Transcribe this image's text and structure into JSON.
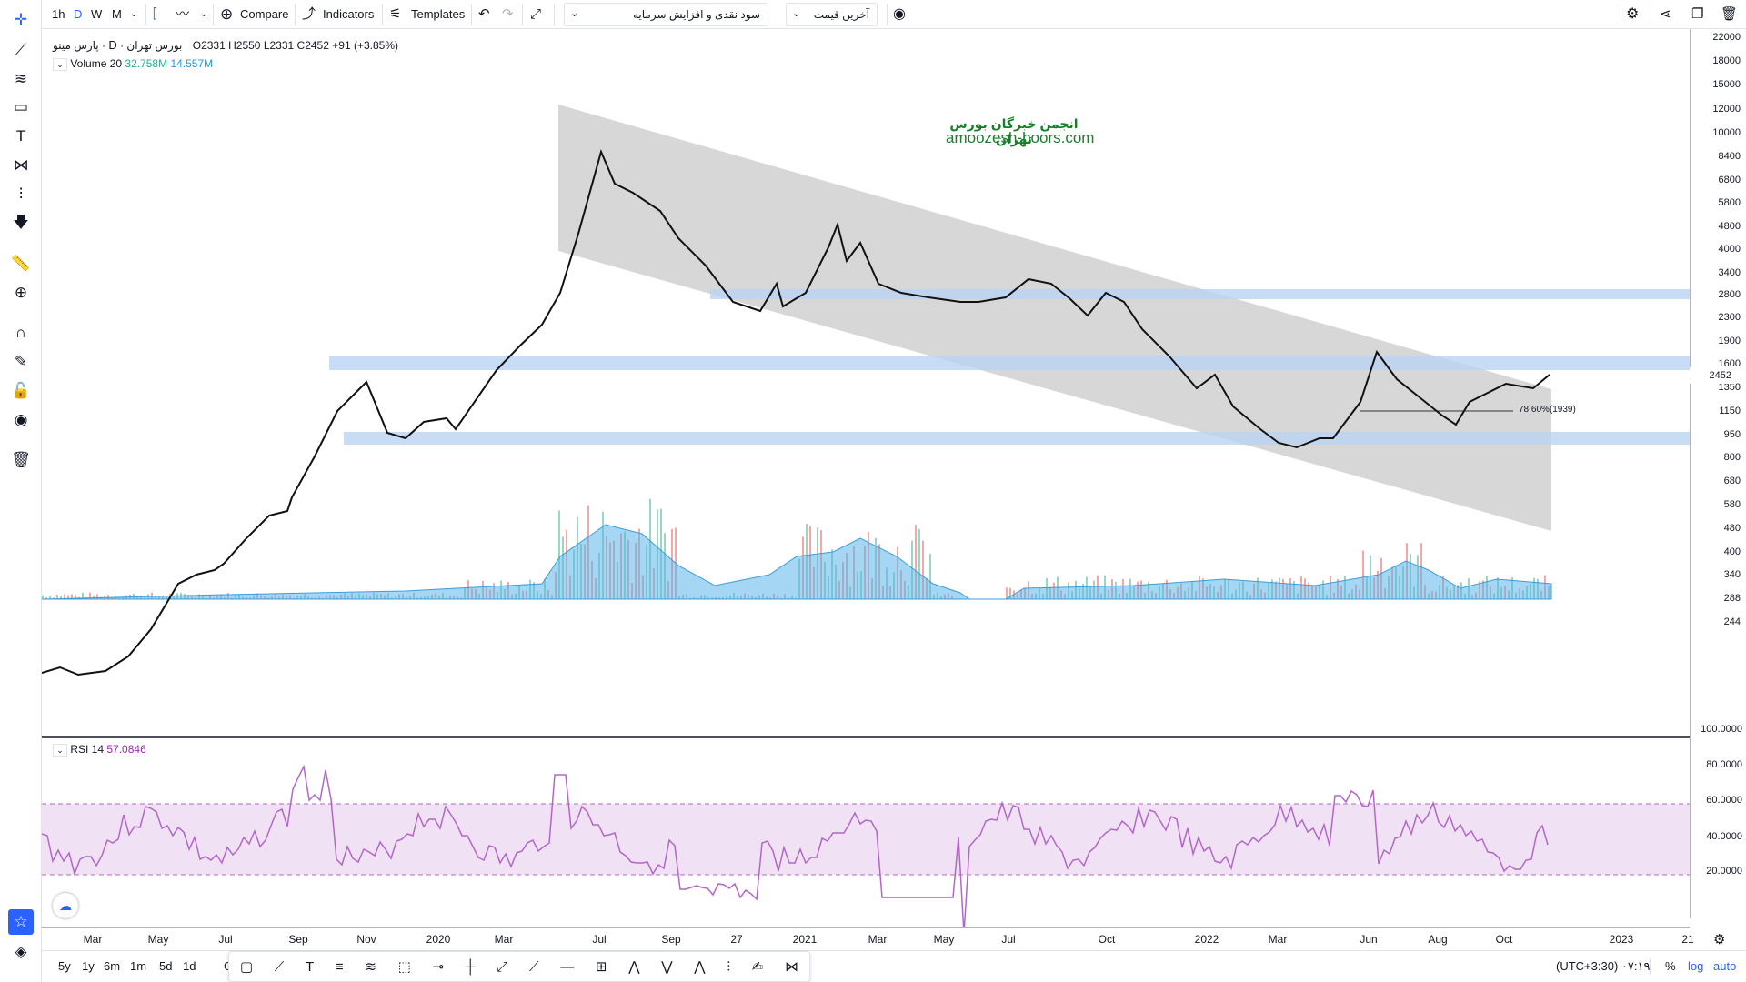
{
  "toolbar": {
    "intervals": [
      "1h",
      "D",
      "W",
      "M"
    ],
    "compare_label": "Compare",
    "indicators_label": "Indicators",
    "templates_label": "Templates",
    "dropdown_template": "سود نقدی و افزایش سرمایه",
    "dropdown_price": "آخرین قیمت"
  },
  "legend": {
    "symbol_name": "پارس مینو",
    "exchange": "بورس تهران",
    "interval": "D",
    "open": "O2331",
    "high": "H2550",
    "low": "L2331",
    "close": "C2452",
    "change": "+91 (+3.85%)",
    "volume_label": "Volume 20",
    "volume_value1": "32.758M",
    "volume_value2": "14.557M",
    "rsi_label": "RSI 14",
    "rsi_value": "57.0846"
  },
  "watermark": {
    "line1": "انجمن خبرگان بورس تهران",
    "line2": "amoozesh-boors.com"
  },
  "fib_label": "78.60%(1939)",
  "price_axis": {
    "ticks": [
      "22000",
      "18000",
      "15000",
      "12000",
      "10000",
      "8400",
      "6800",
      "5800",
      "4800",
      "4000",
      "3400",
      "2800",
      "2300",
      "1900",
      "1600",
      "1350",
      "1150",
      "950",
      "800",
      "680",
      "580",
      "480",
      "400",
      "340",
      "288",
      "244"
    ],
    "current_price": "2452"
  },
  "rsi_axis": {
    "ticks": [
      "100.0000",
      "80.0000",
      "60.0000",
      "40.0000",
      "20.0000"
    ]
  },
  "time_axis": {
    "labels": [
      "Mar",
      "May",
      "Jul",
      "Sep",
      "Nov",
      "2020",
      "Mar",
      "Jul",
      "Sep",
      "27",
      "2021",
      "Mar",
      "May",
      "Jul",
      "Oct",
      "2022",
      "Mar",
      "Jun",
      "Aug",
      "Oct",
      "2023",
      "21"
    ]
  },
  "bottom": {
    "ranges": [
      "5y",
      "1y",
      "6m",
      "1m",
      "5d",
      "1d"
    ],
    "goto": "G",
    "clock": "۰۷:۱۹ (UTC+3:30)",
    "percent": "%",
    "log": "log",
    "auto": "auto"
  },
  "colors": {
    "accent": "#2962ff",
    "channel": "#c9c9c9",
    "zone": "#bbd3f3",
    "rsi_line": "#b267c8",
    "rsi_band": "#f1e1f4",
    "volume_ma": "#5bb4ea",
    "vol_up": "#9ad7c1",
    "vol_down": "#f4a7a5"
  }
}
